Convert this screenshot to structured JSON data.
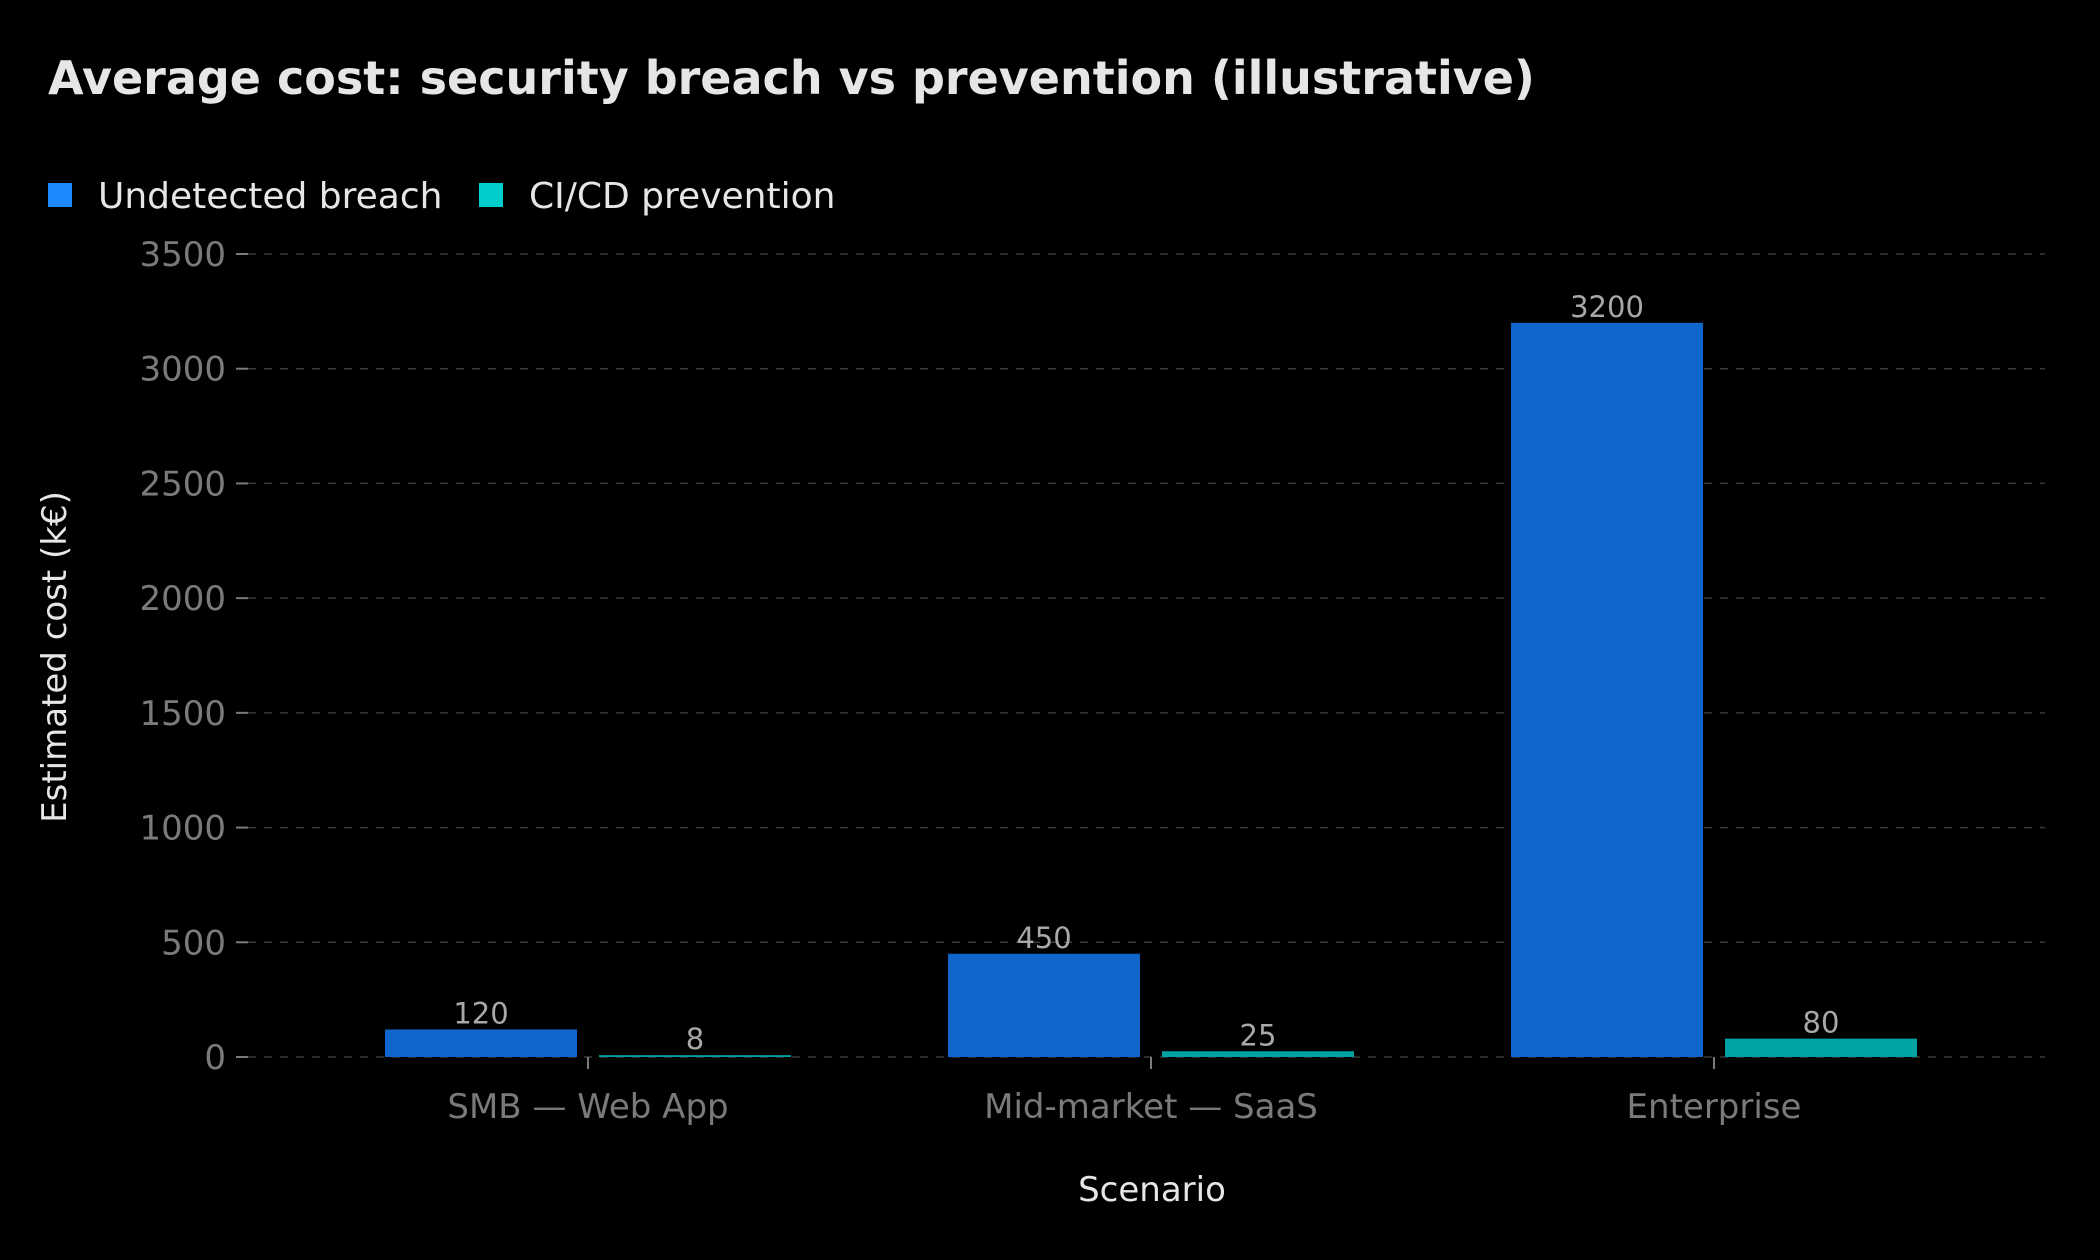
{
  "chart_data": {
    "type": "bar",
    "title": "Average cost: security breach vs prevention (illustrative)",
    "xlabel": "Scenario",
    "ylabel": "Estimated cost (k€)",
    "categories": [
      "SMB — Web App",
      "Mid-market — SaaS",
      "Enterprise"
    ],
    "series": [
      {
        "name": "Undetected breach",
        "values": [
          120,
          450,
          3200
        ],
        "color": "#1166cc",
        "legend_color": "#1e88ff"
      },
      {
        "name": "CI/CD prevention",
        "values": [
          8,
          25,
          80
        ],
        "color": "#00a3a3",
        "legend_color": "#00cccc"
      }
    ],
    "yticks": [
      0,
      500,
      1000,
      1500,
      2000,
      2500,
      3000,
      3500
    ],
    "ylim": [
      0,
      3500
    ],
    "grid": true,
    "legend_position": "top-left",
    "data_labels": true
  }
}
